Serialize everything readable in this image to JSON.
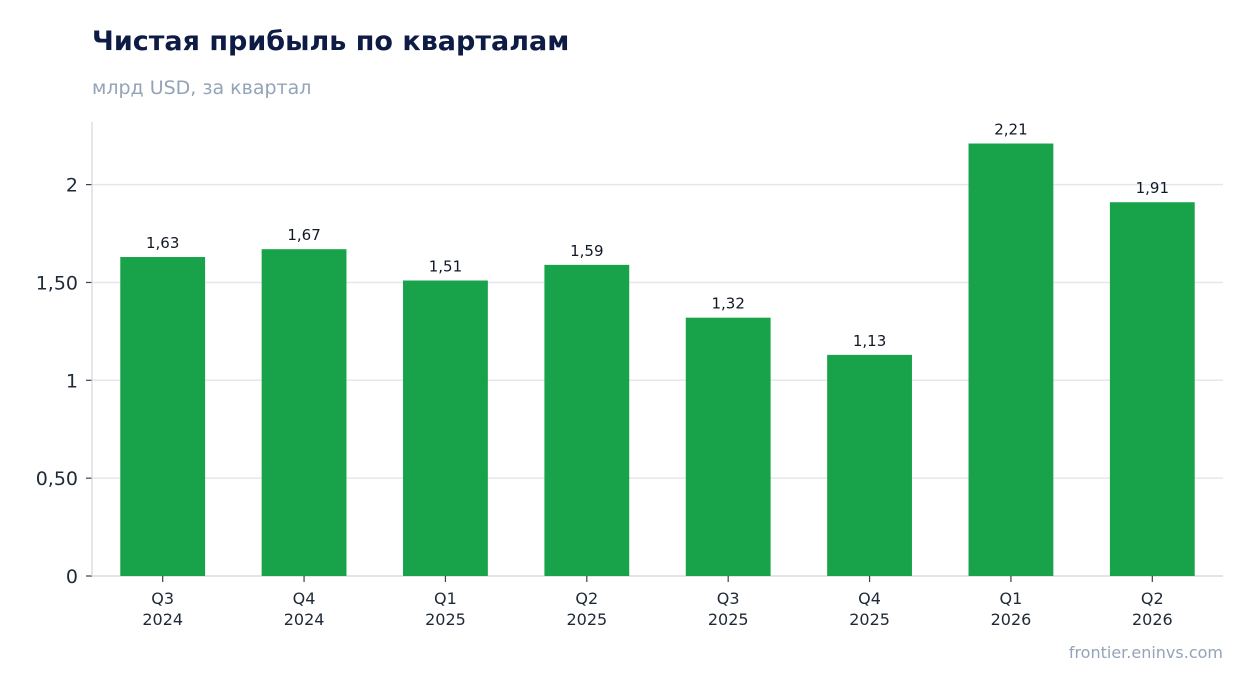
{
  "chart_data": {
    "type": "bar",
    "title": "Чистая прибыль по кварталам",
    "subtitle": "млрд USD, за квартал",
    "categories": [
      [
        "Q3",
        "2024"
      ],
      [
        "Q4",
        "2024"
      ],
      [
        "Q1",
        "2025"
      ],
      [
        "Q2",
        "2025"
      ],
      [
        "Q3",
        "2025"
      ],
      [
        "Q4",
        "2025"
      ],
      [
        "Q1",
        "2026"
      ],
      [
        "Q2",
        "2026"
      ]
    ],
    "values": [
      1.63,
      1.67,
      1.51,
      1.59,
      1.32,
      1.13,
      2.21,
      1.91
    ],
    "data_labels": [
      "1,63",
      "1,67",
      "1,51",
      "1,59",
      "1,32",
      "1,13",
      "2,21",
      "1,91"
    ],
    "yticks": [
      0,
      0.5,
      1,
      1.5,
      2
    ],
    "ytick_labels": [
      "0",
      "0,50",
      "1",
      "1,50",
      "2"
    ],
    "ylim": [
      0,
      2.32
    ],
    "grid": true,
    "legend": "none",
    "bar_color": "#18a34a",
    "grid_color": "#e5e7eb",
    "axis_color": "#d1d5db"
  },
  "footer": {
    "source": "frontier.eninvs.com"
  }
}
